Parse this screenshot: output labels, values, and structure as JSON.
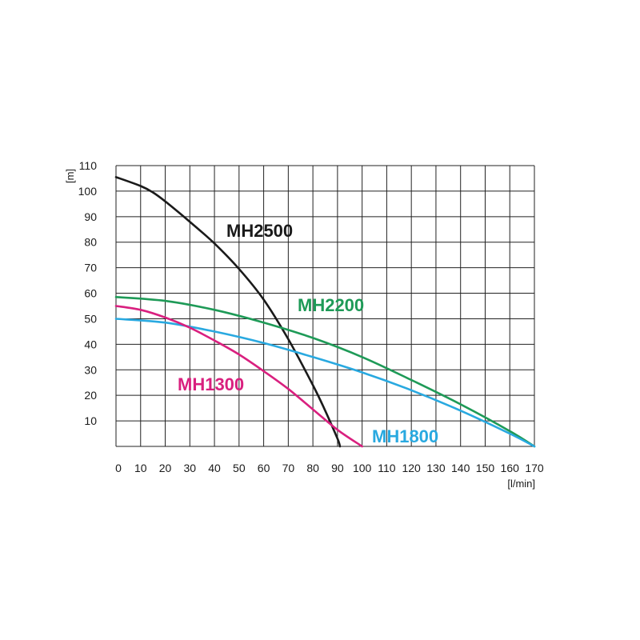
{
  "chart_data": {
    "type": "line",
    "xlabel": "[l/min]",
    "ylabel": "[m]",
    "xlim": [
      0,
      170
    ],
    "ylim": [
      0,
      110
    ],
    "x_ticks": [
      0,
      10,
      20,
      30,
      40,
      50,
      60,
      70,
      80,
      90,
      100,
      110,
      120,
      130,
      140,
      150,
      160,
      170
    ],
    "y_ticks": [
      10,
      20,
      30,
      40,
      50,
      60,
      70,
      80,
      90,
      100,
      110
    ],
    "grid": true,
    "legend": "inline",
    "series": [
      {
        "name": "MH2500",
        "color": "#1a1a1a",
        "x": [
          0,
          10,
          15,
          20,
          30,
          40,
          50,
          60,
          70,
          80,
          85,
          90,
          91
        ],
        "y": [
          105.5,
          102,
          99.5,
          96,
          88,
          79.5,
          69.5,
          57.5,
          42,
          24,
          14,
          3,
          0
        ]
      },
      {
        "name": "MH2200",
        "color": "#1e9a57",
        "x": [
          0,
          20,
          40,
          60,
          80,
          100,
          120,
          140,
          160,
          170
        ],
        "y": [
          58.5,
          57,
          53.5,
          48.5,
          42.5,
          35,
          26,
          16.5,
          6,
          0
        ]
      },
      {
        "name": "MH1800",
        "color": "#29a9e0",
        "x": [
          0,
          20,
          40,
          60,
          80,
          100,
          120,
          140,
          160,
          170
        ],
        "y": [
          50,
          48.5,
          45,
          40.5,
          35,
          29,
          22,
          14,
          5,
          0
        ]
      },
      {
        "name": "MH1300",
        "color": "#d9207f",
        "x": [
          0,
          10,
          20,
          30,
          40,
          50,
          60,
          70,
          80,
          90,
          100
        ],
        "y": [
          55,
          53.5,
          50.5,
          46.5,
          41.5,
          36,
          29.5,
          22.5,
          14.5,
          6.5,
          0
        ]
      }
    ]
  }
}
